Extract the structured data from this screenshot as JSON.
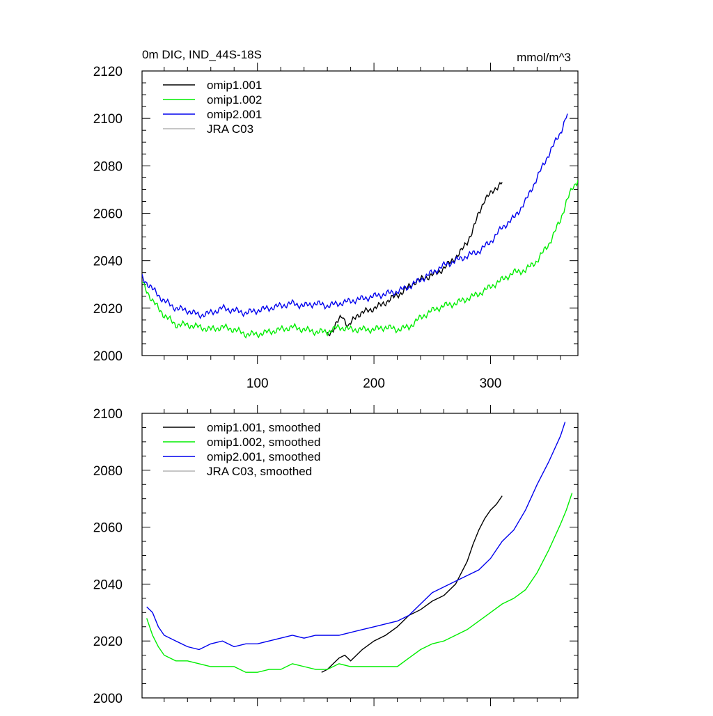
{
  "chart_data": [
    {
      "type": "line",
      "title": "0m DIC, IND_44S-18S",
      "units": "mmol/m^3",
      "xlim": [
        1,
        375
      ],
      "ylim": [
        2000,
        2120
      ],
      "xticks": [
        100,
        200,
        300
      ],
      "xtick_labels": [
        "100",
        "200",
        "300"
      ],
      "yticks": [
        2000,
        2020,
        2040,
        2060,
        2080,
        2100,
        2120
      ],
      "ytick_labels": [
        "2000",
        "2020",
        "2040",
        "2060",
        "2080",
        "2100",
        "2120"
      ],
      "legend_position": "top-left",
      "series": [
        {
          "name": "omip1.001",
          "color": "#000000",
          "x": [
            160,
            165,
            170,
            173,
            178,
            185,
            195,
            205,
            215,
            225,
            235,
            245,
            255,
            265,
            275,
            280,
            285,
            290,
            295,
            300,
            305,
            310
          ],
          "y": [
            2009,
            2011,
            2015,
            2017,
            2012,
            2017,
            2019,
            2021,
            2024,
            2027,
            2031,
            2033,
            2035,
            2039,
            2044,
            2048,
            2053,
            2060,
            2066,
            2068,
            2071,
            2073
          ]
        },
        {
          "name": "omip1.002",
          "color": "#00ee00",
          "x": [
            1,
            10,
            20,
            30,
            40,
            50,
            60,
            70,
            80,
            90,
            100,
            110,
            120,
            130,
            140,
            150,
            160,
            170,
            180,
            190,
            200,
            210,
            220,
            230,
            240,
            250,
            260,
            270,
            280,
            290,
            300,
            310,
            320,
            330,
            340,
            350,
            360,
            365,
            370,
            375
          ],
          "y": [
            2031,
            2023,
            2017,
            2013,
            2013,
            2012,
            2011,
            2012,
            2011,
            2009,
            2009,
            2010,
            2011,
            2012,
            2011,
            2010,
            2010,
            2012,
            2011,
            2011,
            2011,
            2012,
            2011,
            2012,
            2016,
            2019,
            2021,
            2022,
            2024,
            2026,
            2029,
            2032,
            2035,
            2036,
            2040,
            2047,
            2057,
            2065,
            2070,
            2074
          ]
        },
        {
          "name": "omip2.001",
          "color": "#0000ee",
          "x": [
            1,
            10,
            20,
            30,
            40,
            50,
            60,
            70,
            80,
            90,
            100,
            110,
            120,
            130,
            140,
            150,
            160,
            170,
            180,
            190,
            200,
            210,
            220,
            230,
            240,
            250,
            260,
            270,
            280,
            290,
            300,
            310,
            320,
            330,
            340,
            350,
            360,
            366
          ],
          "y": [
            2033,
            2028,
            2023,
            2020,
            2019,
            2017,
            2018,
            2020,
            2019,
            2018,
            2019,
            2020,
            2021,
            2022,
            2021,
            2022,
            2021,
            2022,
            2023,
            2024,
            2025,
            2026,
            2027,
            2029,
            2032,
            2035,
            2038,
            2040,
            2042,
            2044,
            2048,
            2054,
            2058,
            2065,
            2075,
            2085,
            2094,
            2102
          ]
        },
        {
          "name": "JRA C03",
          "color": "#b3b3b3",
          "x": [],
          "y": []
        }
      ]
    },
    {
      "type": "line",
      "title": "",
      "units": "",
      "xlim": [
        1,
        375
      ],
      "ylim": [
        2000,
        2100
      ],
      "xticks": [
        100,
        200,
        300
      ],
      "xtick_labels": [
        "",
        "",
        ""
      ],
      "yticks": [
        2000,
        2020,
        2040,
        2060,
        2080,
        2100
      ],
      "ytick_labels": [
        "2000",
        "2020",
        "2040",
        "2060",
        "2080",
        "2100"
      ],
      "legend_position": "top-left",
      "series": [
        {
          "name": "omip1.001, smoothed",
          "color": "#000000",
          "x": [
            155,
            160,
            165,
            170,
            175,
            180,
            190,
            200,
            210,
            220,
            230,
            240,
            250,
            260,
            270,
            280,
            285,
            290,
            295,
            300,
            305,
            310
          ],
          "y": [
            2009,
            2010,
            2012,
            2014,
            2015,
            2013,
            2017,
            2020,
            2022,
            2025,
            2029,
            2031,
            2034,
            2036,
            2040,
            2048,
            2054,
            2059,
            2063,
            2066,
            2068,
            2071
          ]
        },
        {
          "name": "omip1.002, smoothed",
          "color": "#00ee00",
          "x": [
            5,
            10,
            15,
            20,
            30,
            40,
            50,
            60,
            70,
            80,
            90,
            100,
            110,
            120,
            130,
            140,
            150,
            160,
            170,
            180,
            190,
            200,
            210,
            220,
            230,
            240,
            250,
            260,
            270,
            280,
            290,
            300,
            310,
            320,
            330,
            340,
            350,
            360,
            365,
            370
          ],
          "y": [
            2028,
            2022,
            2018,
            2015,
            2013,
            2013,
            2012,
            2011,
            2011,
            2011,
            2009,
            2009,
            2010,
            2010,
            2012,
            2011,
            2010,
            2010,
            2012,
            2011,
            2011,
            2011,
            2011,
            2011,
            2014,
            2017,
            2019,
            2020,
            2022,
            2024,
            2027,
            2030,
            2033,
            2035,
            2038,
            2044,
            2052,
            2061,
            2066,
            2072
          ]
        },
        {
          "name": "omip2.001, smoothed",
          "color": "#0000ee",
          "x": [
            5,
            10,
            15,
            20,
            30,
            40,
            50,
            60,
            70,
            80,
            90,
            100,
            110,
            120,
            130,
            140,
            150,
            160,
            170,
            180,
            190,
            200,
            210,
            220,
            230,
            240,
            250,
            260,
            270,
            280,
            290,
            300,
            310,
            320,
            330,
            340,
            350,
            360,
            364
          ],
          "y": [
            2032,
            2030,
            2025,
            2022,
            2020,
            2018,
            2017,
            2019,
            2020,
            2018,
            2019,
            2019,
            2020,
            2021,
            2022,
            2021,
            2022,
            2022,
            2022,
            2023,
            2024,
            2025,
            2026,
            2027,
            2029,
            2033,
            2037,
            2039,
            2041,
            2043,
            2045,
            2049,
            2055,
            2059,
            2066,
            2075,
            2083,
            2092,
            2097
          ]
        },
        {
          "name": "JRA C03, smoothed",
          "color": "#b3b3b3",
          "x": [],
          "y": []
        }
      ]
    }
  ]
}
